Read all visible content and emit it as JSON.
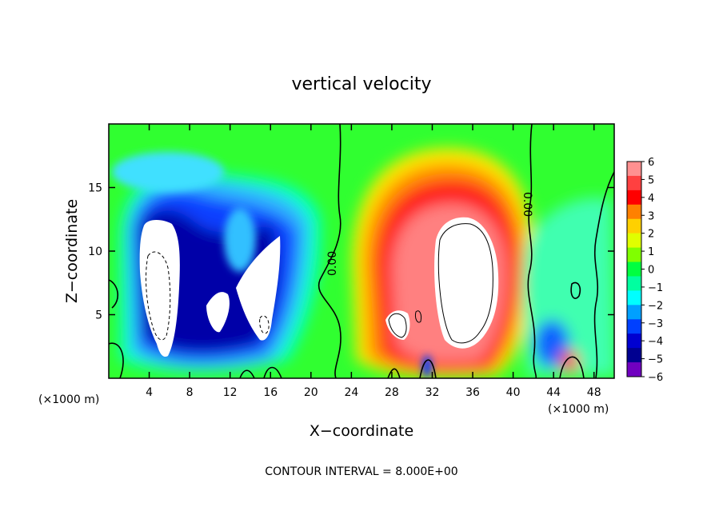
{
  "chart_data": {
    "type": "heatmap",
    "title": "vertical velocity",
    "xlabel": "X−coordinate",
    "ylabel": "Z−coordinate",
    "x_unit_left": "(×1000 m)",
    "x_unit_right": "(×1000 m)",
    "footer": "CONTOUR INTERVAL = 8.000E+00",
    "xlim": [
      0,
      50
    ],
    "ylim": [
      0,
      20
    ],
    "x_ticks": [
      4,
      8,
      12,
      16,
      20,
      24,
      28,
      32,
      36,
      40,
      44,
      48
    ],
    "y_ticks": [
      5,
      10,
      15
    ],
    "contour_label": "0.00",
    "colorbar": {
      "levels": [
        6,
        5,
        4,
        3,
        2,
        1,
        0,
        -1,
        -2,
        -3,
        -4,
        -5,
        -6
      ],
      "labels": [
        "6",
        "5",
        "4",
        "3",
        "2",
        "1",
        "0",
        "−1",
        "−2",
        "−3",
        "−4",
        "−5",
        "−6"
      ],
      "colors": [
        "#ff9090",
        "#ff4040",
        "#ff0000",
        "#ff8000",
        "#ffd000",
        "#e0ff00",
        "#80ff00",
        "#00ff40",
        "#00ffa0",
        "#00ffff",
        "#00a0ff",
        "#0040ff",
        "#0000d0",
        "#000090",
        "#7000c0"
      ]
    },
    "features": [
      {
        "name": "downdraft-left",
        "x": [
          4,
          17
        ],
        "z": [
          2,
          13
        ],
        "sign": "negative"
      },
      {
        "name": "updraft-core",
        "x": [
          28,
          40
        ],
        "z": [
          2,
          13
        ],
        "sign": "positive"
      },
      {
        "name": "weak-downdraft-right",
        "x": [
          42,
          49
        ],
        "z": [
          1,
          8
        ],
        "sign": "negative"
      }
    ]
  }
}
